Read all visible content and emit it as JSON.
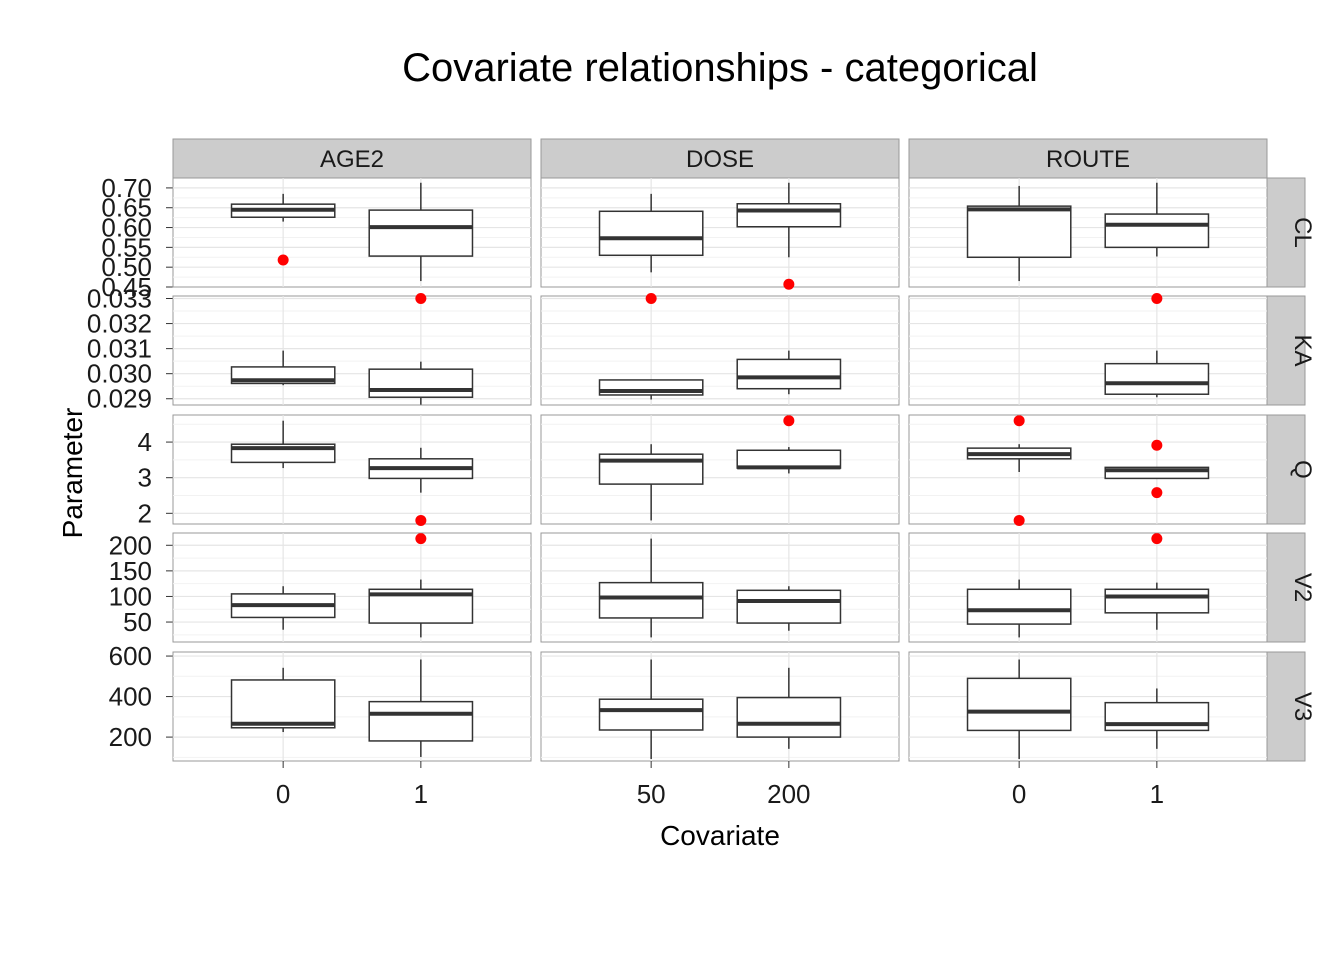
{
  "chart_data": {
    "type": "box",
    "title": "Covariate relationships - categorical",
    "xlabel": "Covariate",
    "ylabel": "Parameter",
    "grid": true,
    "columns": [
      {
        "name": "AGE2",
        "categories": [
          "0",
          "1"
        ]
      },
      {
        "name": "DOSE",
        "categories": [
          "50",
          "200"
        ]
      },
      {
        "name": "ROUTE",
        "categories": [
          "0",
          "1"
        ]
      }
    ],
    "rows": [
      {
        "name": "CL",
        "ylim": [
          0.45,
          0.725
        ],
        "ticks": [
          0.45,
          0.5,
          0.55,
          0.6,
          0.65,
          0.7
        ],
        "tick_labels": [
          "0.45",
          "0.50",
          "0.55",
          "0.60",
          "0.65",
          "0.70"
        ],
        "minor": [
          0.475,
          0.525,
          0.575,
          0.625,
          0.675
        ],
        "panels": [
          {
            "column": "AGE2",
            "boxes": [
              {
                "category": "0",
                "min": 0.615,
                "q1": 0.626,
                "median": 0.645,
                "q3": 0.659,
                "max": 0.685,
                "outliers": [
                  0.518
                ]
              },
              {
                "category": "1",
                "min": 0.465,
                "q1": 0.528,
                "median": 0.601,
                "q3": 0.644,
                "max": 0.713,
                "outliers": []
              }
            ]
          },
          {
            "column": "DOSE",
            "boxes": [
              {
                "category": "50",
                "min": 0.487,
                "q1": 0.53,
                "median": 0.573,
                "q3": 0.641,
                "max": 0.685,
                "outliers": []
              },
              {
                "category": "200",
                "min": 0.525,
                "q1": 0.602,
                "median": 0.643,
                "q3": 0.66,
                "max": 0.713,
                "outliers": [
                  0.457
                ]
              }
            ]
          },
          {
            "column": "ROUTE",
            "boxes": [
              {
                "category": "0",
                "min": 0.465,
                "q1": 0.525,
                "median": 0.646,
                "q3": 0.654,
                "max": 0.705,
                "outliers": []
              },
              {
                "category": "1",
                "min": 0.527,
                "q1": 0.55,
                "median": 0.607,
                "q3": 0.634,
                "max": 0.713,
                "outliers": []
              }
            ]
          }
        ]
      },
      {
        "name": "KA",
        "ylim": [
          0.02875,
          0.0331
        ],
        "ticks": [
          0.029,
          0.03,
          0.031,
          0.032,
          0.033
        ],
        "tick_labels": [
          "0.029",
          "0.030",
          "0.031",
          "0.032",
          "0.033"
        ],
        "minor": [
          0.0295,
          0.0305,
          0.0315,
          0.0325
        ],
        "panels": [
          {
            "column": "AGE2",
            "boxes": [
              {
                "category": "0",
                "min": 0.02954,
                "q1": 0.02961,
                "median": 0.02974,
                "q3": 0.03027,
                "max": 0.03092,
                "outliers": []
              },
              {
                "category": "1",
                "min": 0.02876,
                "q1": 0.02906,
                "median": 0.02935,
                "q3": 0.03018,
                "max": 0.03048,
                "outliers": [
                  0.033
                ]
              }
            ]
          },
          {
            "column": "DOSE",
            "boxes": [
              {
                "category": "50",
                "min": 0.02897,
                "q1": 0.02915,
                "median": 0.02931,
                "q3": 0.02975,
                "max": 0.02975,
                "outliers": [
                  0.033
                ]
              },
              {
                "category": "200",
                "min": 0.02918,
                "q1": 0.0294,
                "median": 0.02985,
                "q3": 0.03057,
                "max": 0.03092,
                "outliers": []
              }
            ]
          },
          {
            "column": "ROUTE",
            "boxes": [
              {
                "category": "1",
                "min": 0.02906,
                "q1": 0.02918,
                "median": 0.02962,
                "q3": 0.0304,
                "max": 0.03092,
                "outliers": [
                  0.033
                ]
              }
            ]
          }
        ]
      },
      {
        "name": "Q",
        "ylim": [
          1.7,
          4.76
        ],
        "ticks": [
          2,
          3,
          4
        ],
        "tick_labels": [
          "2",
          "3",
          "4"
        ],
        "minor": [
          2.5,
          3.5,
          4.5
        ],
        "panels": [
          {
            "column": "AGE2",
            "boxes": [
              {
                "category": "0",
                "min": 3.27,
                "q1": 3.43,
                "median": 3.83,
                "q3": 3.94,
                "max": 4.6,
                "outliers": []
              },
              {
                "category": "1",
                "min": 2.58,
                "q1": 2.98,
                "median": 3.27,
                "q3": 3.53,
                "max": 3.84,
                "outliers": [
                  1.8
                ]
              }
            ]
          },
          {
            "column": "DOSE",
            "boxes": [
              {
                "category": "50",
                "min": 1.8,
                "q1": 2.82,
                "median": 3.48,
                "q3": 3.66,
                "max": 3.94,
                "outliers": []
              },
              {
                "category": "200",
                "min": 3.12,
                "q1": 3.27,
                "median": 3.29,
                "q3": 3.77,
                "max": 3.86,
                "outliers": [
                  4.6
                ]
              }
            ]
          },
          {
            "column": "ROUTE",
            "boxes": [
              {
                "category": "0",
                "min": 3.16,
                "q1": 3.53,
                "median": 3.66,
                "q3": 3.83,
                "max": 3.94,
                "outliers": [
                  4.6,
                  1.8
                ]
              },
              {
                "category": "1",
                "min": 2.98,
                "q1": 2.98,
                "median": 3.21,
                "q3": 3.29,
                "max": 3.29,
                "outliers": [
                  3.91,
                  2.58
                ]
              }
            ]
          }
        ]
      },
      {
        "name": "V2",
        "ylim": [
          11,
          224
        ],
        "ticks": [
          50,
          100,
          150,
          200
        ],
        "tick_labels": [
          "50",
          "100",
          "150",
          "200"
        ],
        "minor": [
          25,
          75,
          125,
          175
        ],
        "panels": [
          {
            "column": "AGE2",
            "boxes": [
              {
                "category": "0",
                "min": 35,
                "q1": 59,
                "median": 83,
                "q3": 105,
                "max": 120,
                "outliers": []
              },
              {
                "category": "1",
                "min": 20,
                "q1": 48,
                "median": 104,
                "q3": 114,
                "max": 133,
                "outliers": [
                  213
                ]
              }
            ]
          },
          {
            "column": "DOSE",
            "boxes": [
              {
                "category": "50",
                "min": 20,
                "q1": 58,
                "median": 98,
                "q3": 127,
                "max": 213,
                "outliers": []
              },
              {
                "category": "200",
                "min": 33,
                "q1": 48,
                "median": 91,
                "q3": 112,
                "max": 120,
                "outliers": []
              }
            ]
          },
          {
            "column": "ROUTE",
            "boxes": [
              {
                "category": "0",
                "min": 20,
                "q1": 46,
                "median": 73,
                "q3": 114,
                "max": 133,
                "outliers": []
              },
              {
                "category": "1",
                "min": 35,
                "q1": 68,
                "median": 100,
                "q3": 114,
                "max": 127,
                "outliers": [
                  213
                ]
              }
            ]
          }
        ]
      },
      {
        "name": "V3",
        "ylim": [
          82,
          620
        ],
        "ticks": [
          200,
          400,
          600
        ],
        "tick_labels": [
          "200",
          "400",
          "600"
        ],
        "minor": [
          100,
          300,
          500
        ],
        "panels": [
          {
            "column": "AGE2",
            "boxes": [
              {
                "category": "0",
                "min": 225,
                "q1": 246,
                "median": 266,
                "q3": 482,
                "max": 542,
                "outliers": []
              },
              {
                "category": "1",
                "min": 102,
                "q1": 181,
                "median": 315,
                "q3": 375,
                "max": 583,
                "outliers": []
              }
            ]
          },
          {
            "column": "DOSE",
            "boxes": [
              {
                "category": "50",
                "min": 92,
                "q1": 235,
                "median": 333,
                "q3": 387,
                "max": 583,
                "outliers": []
              },
              {
                "category": "200",
                "min": 142,
                "q1": 200,
                "median": 266,
                "q3": 395,
                "max": 542,
                "outliers": []
              }
            ]
          },
          {
            "column": "ROUTE",
            "boxes": [
              {
                "category": "0",
                "min": 92,
                "q1": 233,
                "median": 326,
                "q3": 490,
                "max": 583,
                "outliers": []
              },
              {
                "category": "1",
                "min": 142,
                "q1": 233,
                "median": 264,
                "q3": 370,
                "max": 440,
                "outliers": []
              }
            ]
          }
        ]
      }
    ]
  }
}
